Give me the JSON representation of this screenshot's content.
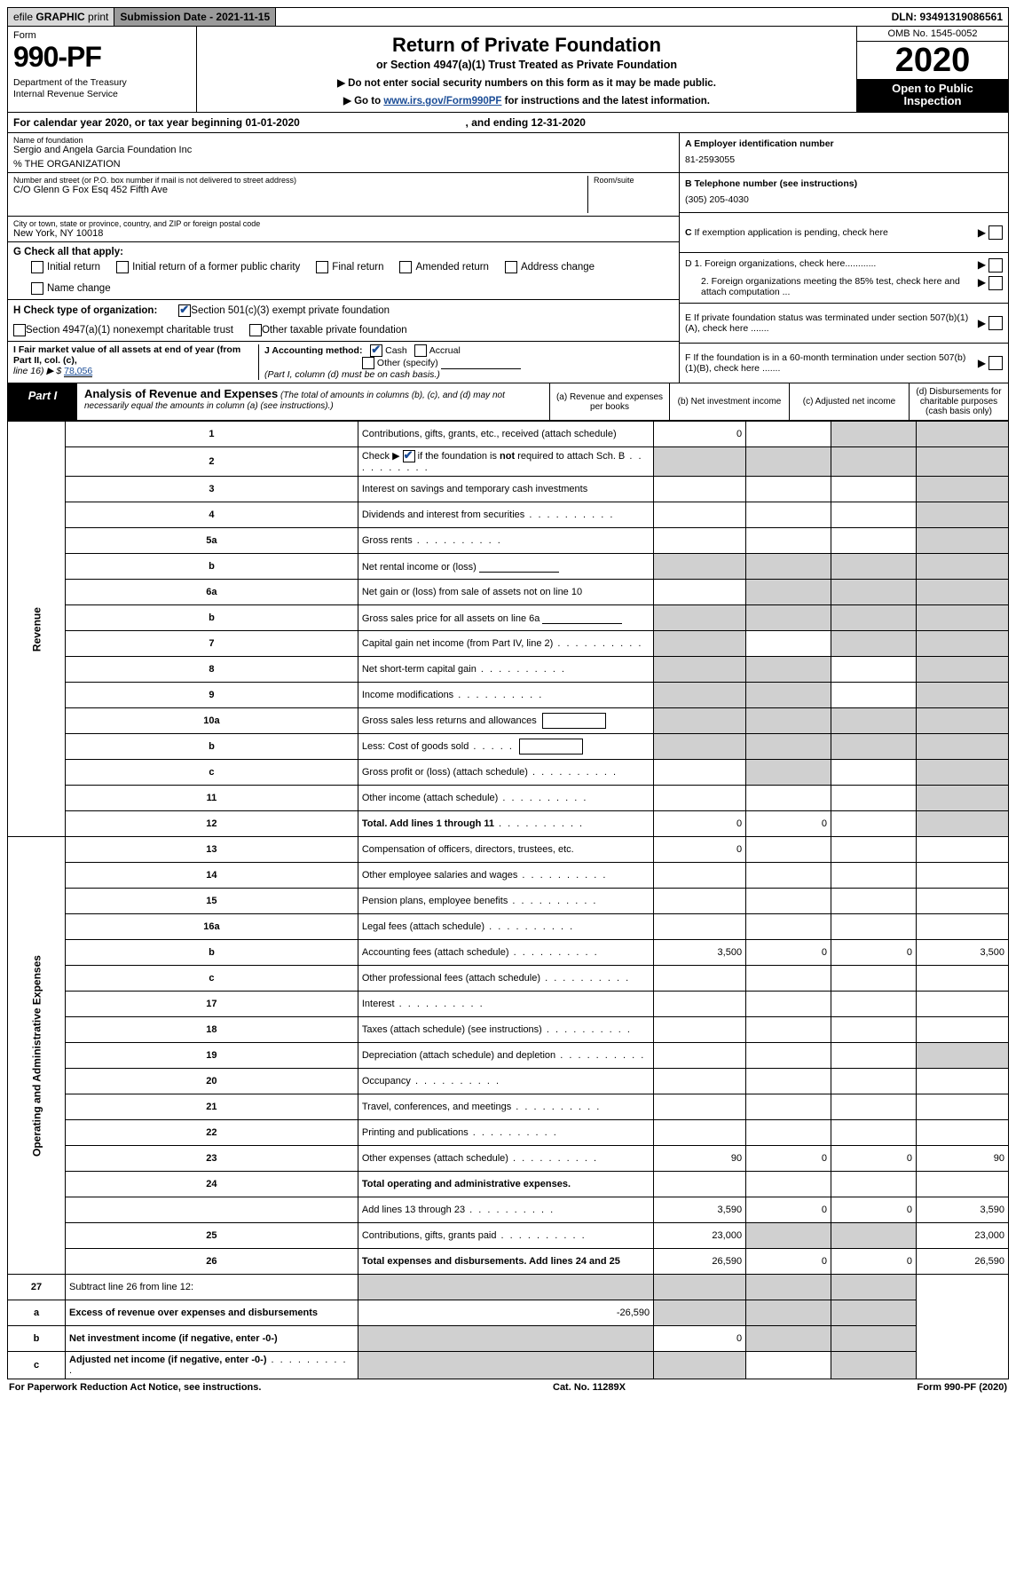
{
  "top": {
    "efile_prefix": "efile",
    "efile_bold": "GRAPHIC",
    "efile_suffix": "print",
    "submission": "Submission Date - 2021-11-15",
    "dln": "DLN: 93491319086561"
  },
  "header": {
    "form_label": "Form",
    "form_number": "990-PF",
    "dept1": "Department of the Treasury",
    "dept2": "Internal Revenue Service",
    "title": "Return of Private Foundation",
    "subtitle": "or Section 4947(a)(1) Trust Treated as Private Foundation",
    "note1": "▶ Do not enter social security numbers on this form as it may be made public.",
    "note2_pre": "▶ Go to ",
    "note2_link": "www.irs.gov/Form990PF",
    "note2_post": " for instructions and the latest information.",
    "omb": "OMB No. 1545-0052",
    "year": "2020",
    "inspect1": "Open to Public",
    "inspect2": "Inspection"
  },
  "cal": {
    "text_pre": "For calendar year 2020, or tax year beginning ",
    "begin": "01-01-2020",
    "mid": " , and ending ",
    "end": "12-31-2020"
  },
  "info": {
    "name_lbl": "Name of foundation",
    "name_val": "Sergio and Angela Garcia Foundation Inc",
    "org_line": "% THE ORGANIZATION",
    "addr_lbl": "Number and street (or P.O. box number if mail is not delivered to street address)",
    "addr_val": "C/O Glenn G Fox Esq 452 Fifth Ave",
    "room_lbl": "Room/suite",
    "city_lbl": "City or town, state or province, country, and ZIP or foreign postal code",
    "city_val": "New York, NY  10018",
    "a_lbl": "A Employer identification number",
    "a_val": "81-2593055",
    "b_lbl": "B Telephone number (see instructions)",
    "b_val": "(305) 205-4030",
    "c_lbl": "C If exemption application is pending, check here",
    "d1": "D 1. Foreign organizations, check here............",
    "d2": "2. Foreign organizations meeting the 85% test, check here and attach computation ...",
    "e": "E  If private foundation status was terminated under section 507(b)(1)(A), check here .......",
    "f": "F  If the foundation is in a 60-month termination under section 507(b)(1)(B), check here .......",
    "g_lbl": "G Check all that apply:",
    "g_opts": [
      "Initial return",
      "Initial return of a former public charity",
      "Final return",
      "Amended return",
      "Address change",
      "Name change"
    ],
    "h_lbl": "H Check type of organization:",
    "h_opt1": "Section 501(c)(3) exempt private foundation",
    "h_opt2": "Section 4947(a)(1) nonexempt charitable trust",
    "h_opt3": "Other taxable private foundation",
    "i_lbl": "I Fair market value of all assets at end of year (from Part II, col. (c),",
    "i_line": "line 16) ▶ $",
    "i_val": "78,056",
    "j_lbl": "J Accounting method:",
    "j_cash": "Cash",
    "j_accrual": "Accrual",
    "j_other": "Other (specify)",
    "j_note": "(Part I, column (d) must be on cash basis.)"
  },
  "part1": {
    "label": "Part I",
    "title": "Analysis of Revenue and Expenses",
    "title_note": " (The total of amounts in columns (b), (c), and (d) may not necessarily equal the amounts in column (a) (see instructions).)",
    "col_a": "(a)  Revenue and expenses per books",
    "col_b": "(b)  Net investment income",
    "col_c": "(c)  Adjusted net income",
    "col_d": "(d)  Disbursements for charitable purposes (cash basis only)"
  },
  "vlabels": {
    "rev": "Revenue",
    "exp": "Operating and Administrative Expenses"
  },
  "rows": [
    {
      "n": "1",
      "d": "Contributions, gifts, grants, etc., received (attach schedule)",
      "a": "0",
      "b": "",
      "c": "s",
      "ds": "s"
    },
    {
      "n": "2",
      "d": "Check ▶ ☑ if the foundation is not required to attach Sch. B",
      "a": "s",
      "b": "s",
      "c": "s",
      "ds": "s",
      "chk": true,
      "dots": true
    },
    {
      "n": "3",
      "d": "Interest on savings and temporary cash investments",
      "a": "",
      "b": "",
      "c": "",
      "ds": "s"
    },
    {
      "n": "4",
      "d": "Dividends and interest from securities",
      "a": "",
      "b": "",
      "c": "",
      "ds": "s",
      "dots": true
    },
    {
      "n": "5a",
      "d": "Gross rents",
      "a": "",
      "b": "",
      "c": "",
      "ds": "s",
      "dots": true
    },
    {
      "n": "b",
      "d": "Net rental income or (loss)",
      "a": "s",
      "b": "s",
      "c": "s",
      "ds": "s",
      "inline": true
    },
    {
      "n": "6a",
      "d": "Net gain or (loss) from sale of assets not on line 10",
      "a": "",
      "b": "s",
      "c": "s",
      "ds": "s"
    },
    {
      "n": "b",
      "d": "Gross sales price for all assets on line 6a",
      "a": "s",
      "b": "s",
      "c": "s",
      "ds": "s",
      "inline": true
    },
    {
      "n": "7",
      "d": "Capital gain net income (from Part IV, line 2)",
      "a": "s",
      "b": "",
      "c": "s",
      "ds": "s",
      "dots": true
    },
    {
      "n": "8",
      "d": "Net short-term capital gain",
      "a": "s",
      "b": "s",
      "c": "",
      "ds": "s",
      "dots": true
    },
    {
      "n": "9",
      "d": "Income modifications",
      "a": "s",
      "b": "s",
      "c": "",
      "ds": "s",
      "dots": true
    },
    {
      "n": "10a",
      "d": "Gross sales less returns and allowances",
      "a": "s",
      "b": "s",
      "c": "s",
      "ds": "s",
      "box": true
    },
    {
      "n": "b",
      "d": "Less: Cost of goods sold",
      "a": "s",
      "b": "s",
      "c": "s",
      "ds": "s",
      "box": true,
      "dots": true
    },
    {
      "n": "c",
      "d": "Gross profit or (loss) (attach schedule)",
      "a": "",
      "b": "s",
      "c": "",
      "ds": "s",
      "dots": true
    },
    {
      "n": "11",
      "d": "Other income (attach schedule)",
      "a": "",
      "b": "",
      "c": "",
      "ds": "s",
      "dots": true
    },
    {
      "n": "12",
      "d": "Total. Add lines 1 through 11",
      "a": "0",
      "b": "0",
      "c": "",
      "ds": "s",
      "bold": true,
      "dots": true
    }
  ],
  "exp_rows": [
    {
      "n": "13",
      "d": "Compensation of officers, directors, trustees, etc.",
      "a": "0",
      "b": "",
      "c": "",
      "ds": ""
    },
    {
      "n": "14",
      "d": "Other employee salaries and wages",
      "a": "",
      "b": "",
      "c": "",
      "ds": "",
      "dots": true
    },
    {
      "n": "15",
      "d": "Pension plans, employee benefits",
      "a": "",
      "b": "",
      "c": "",
      "ds": "",
      "dots": true
    },
    {
      "n": "16a",
      "d": "Legal fees (attach schedule)",
      "a": "",
      "b": "",
      "c": "",
      "ds": "",
      "dots": true
    },
    {
      "n": "b",
      "d": "Accounting fees (attach schedule)",
      "a": "3,500",
      "b": "0",
      "c": "0",
      "ds": "3,500",
      "dots": true
    },
    {
      "n": "c",
      "d": "Other professional fees (attach schedule)",
      "a": "",
      "b": "",
      "c": "",
      "ds": "",
      "dots": true
    },
    {
      "n": "17",
      "d": "Interest",
      "a": "",
      "b": "",
      "c": "",
      "ds": "",
      "dots": true
    },
    {
      "n": "18",
      "d": "Taxes (attach schedule) (see instructions)",
      "a": "",
      "b": "",
      "c": "",
      "ds": "",
      "dots": true
    },
    {
      "n": "19",
      "d": "Depreciation (attach schedule) and depletion",
      "a": "",
      "b": "",
      "c": "",
      "ds": "s",
      "dots": true
    },
    {
      "n": "20",
      "d": "Occupancy",
      "a": "",
      "b": "",
      "c": "",
      "ds": "",
      "dots": true
    },
    {
      "n": "21",
      "d": "Travel, conferences, and meetings",
      "a": "",
      "b": "",
      "c": "",
      "ds": "",
      "dots": true
    },
    {
      "n": "22",
      "d": "Printing and publications",
      "a": "",
      "b": "",
      "c": "",
      "ds": "",
      "dots": true
    },
    {
      "n": "23",
      "d": "Other expenses (attach schedule)",
      "a": "90",
      "b": "0",
      "c": "0",
      "ds": "90",
      "dots": true
    },
    {
      "n": "24",
      "d": "Total operating and administrative expenses.",
      "a": "",
      "b": "",
      "c": "",
      "ds": "",
      "bold": true
    },
    {
      "n": "",
      "d": "Add lines 13 through 23",
      "a": "3,590",
      "b": "0",
      "c": "0",
      "ds": "3,590",
      "dots": true
    },
    {
      "n": "25",
      "d": "Contributions, gifts, grants paid",
      "a": "23,000",
      "b": "s",
      "c": "s",
      "ds": "23,000",
      "dots": true
    },
    {
      "n": "26",
      "d": "Total expenses and disbursements. Add lines 24 and 25",
      "a": "26,590",
      "b": "0",
      "c": "0",
      "ds": "26,590",
      "bold": true
    }
  ],
  "final_rows": [
    {
      "n": "27",
      "d": "Subtract line 26 from line 12:",
      "a": "s",
      "b": "s",
      "c": "s",
      "ds": "s"
    },
    {
      "n": "a",
      "d": "Excess of revenue over expenses and disbursements",
      "a": "-26,590",
      "b": "s",
      "c": "s",
      "ds": "s",
      "bold": true
    },
    {
      "n": "b",
      "d": "Net investment income (if negative, enter -0-)",
      "a": "s",
      "b": "0",
      "c": "s",
      "ds": "s",
      "bold": true
    },
    {
      "n": "c",
      "d": "Adjusted net income (if negative, enter -0-)",
      "a": "s",
      "b": "s",
      "c": "",
      "ds": "s",
      "bold": true,
      "dots": true
    }
  ],
  "footer": {
    "left": "For Paperwork Reduction Act Notice, see instructions.",
    "mid": "Cat. No. 11289X",
    "right": "Form 990-PF (2020)"
  }
}
